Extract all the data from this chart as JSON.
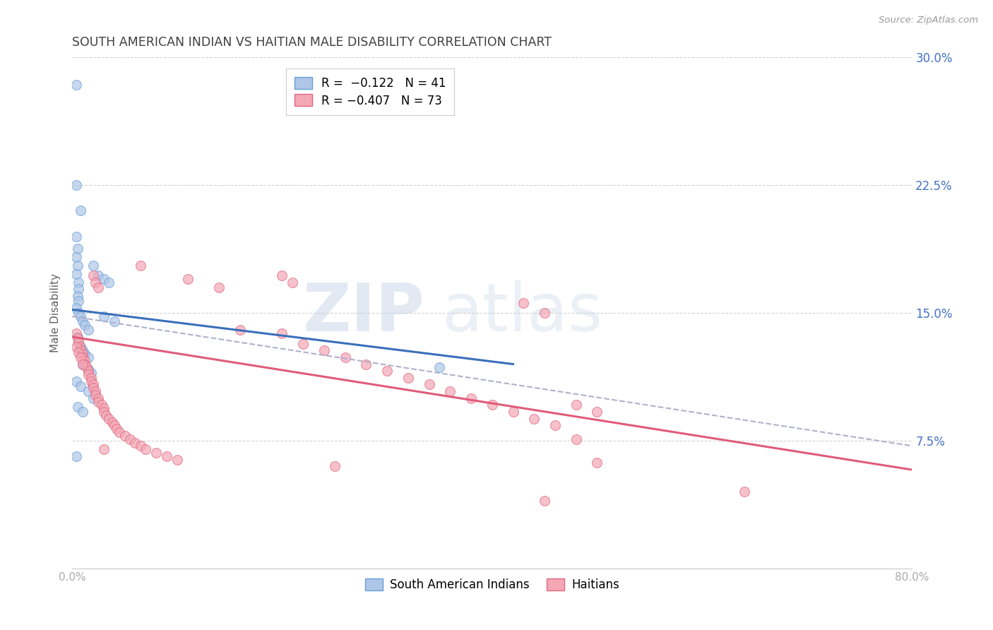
{
  "title": "SOUTH AMERICAN INDIAN VS HAITIAN MALE DISABILITY CORRELATION CHART",
  "source": "Source: ZipAtlas.com",
  "ylabel": "Male Disability",
  "xlim": [
    0.0,
    0.8
  ],
  "ylim": [
    0.0,
    0.3
  ],
  "yticks": [
    0.075,
    0.15,
    0.225,
    0.3
  ],
  "ytick_labels": [
    "7.5%",
    "15.0%",
    "22.5%",
    "30.0%"
  ],
  "xticks": [
    0.0,
    0.1,
    0.2,
    0.3,
    0.4,
    0.5,
    0.6,
    0.7,
    0.8
  ],
  "xtick_labels": [
    "0.0%",
    "",
    "",
    "",
    "",
    "",
    "",
    "",
    "80.0%"
  ],
  "watermark_zip": "ZIP",
  "watermark_atlas": "atlas",
  "background_color": "#ffffff",
  "grid_color": "#c8c8c8",
  "blue_scatter_color": "#aec6e8",
  "blue_scatter_edge": "#6a9fd8",
  "blue_line_color": "#3a6fba",
  "pink_scatter_color": "#f4a7b5",
  "pink_scatter_edge": "#e06880",
  "pink_line_color": "#e05c7a",
  "dash_line_color": "#b0b0cc",
  "title_color": "#404040",
  "axis_label_color": "#606060",
  "tick_label_color_right": "#4472c4",
  "tick_color_bottom": "#aaaaaa",
  "south_american_indians": [
    [
      0.004,
      0.284
    ],
    [
      0.004,
      0.225
    ],
    [
      0.008,
      0.21
    ],
    [
      0.004,
      0.195
    ],
    [
      0.005,
      0.188
    ],
    [
      0.004,
      0.183
    ],
    [
      0.005,
      0.178
    ],
    [
      0.004,
      0.173
    ],
    [
      0.006,
      0.168
    ],
    [
      0.006,
      0.164
    ],
    [
      0.005,
      0.16
    ],
    [
      0.006,
      0.157
    ],
    [
      0.004,
      0.153
    ],
    [
      0.006,
      0.15
    ],
    [
      0.008,
      0.148
    ],
    [
      0.01,
      0.145
    ],
    [
      0.012,
      0.143
    ],
    [
      0.015,
      0.14
    ],
    [
      0.005,
      0.136
    ],
    [
      0.006,
      0.133
    ],
    [
      0.008,
      0.13
    ],
    [
      0.01,
      0.128
    ],
    [
      0.012,
      0.126
    ],
    [
      0.015,
      0.124
    ],
    [
      0.01,
      0.12
    ],
    [
      0.015,
      0.117
    ],
    [
      0.018,
      0.115
    ],
    [
      0.004,
      0.11
    ],
    [
      0.008,
      0.107
    ],
    [
      0.015,
      0.104
    ],
    [
      0.02,
      0.1
    ],
    [
      0.005,
      0.095
    ],
    [
      0.01,
      0.092
    ],
    [
      0.004,
      0.066
    ],
    [
      0.02,
      0.178
    ],
    [
      0.025,
      0.172
    ],
    [
      0.03,
      0.17
    ],
    [
      0.035,
      0.168
    ],
    [
      0.03,
      0.148
    ],
    [
      0.04,
      0.145
    ],
    [
      0.35,
      0.118
    ]
  ],
  "haitians": [
    [
      0.004,
      0.138
    ],
    [
      0.005,
      0.135
    ],
    [
      0.006,
      0.133
    ],
    [
      0.007,
      0.13
    ],
    [
      0.008,
      0.128
    ],
    [
      0.01,
      0.126
    ],
    [
      0.01,
      0.124
    ],
    [
      0.012,
      0.122
    ],
    [
      0.012,
      0.12
    ],
    [
      0.014,
      0.118
    ],
    [
      0.015,
      0.116
    ],
    [
      0.015,
      0.114
    ],
    [
      0.018,
      0.112
    ],
    [
      0.018,
      0.11
    ],
    [
      0.02,
      0.108
    ],
    [
      0.02,
      0.106
    ],
    [
      0.022,
      0.104
    ],
    [
      0.022,
      0.102
    ],
    [
      0.025,
      0.1
    ],
    [
      0.025,
      0.098
    ],
    [
      0.028,
      0.096
    ],
    [
      0.03,
      0.094
    ],
    [
      0.03,
      0.092
    ],
    [
      0.032,
      0.09
    ],
    [
      0.035,
      0.088
    ],
    [
      0.038,
      0.086
    ],
    [
      0.04,
      0.084
    ],
    [
      0.042,
      0.082
    ],
    [
      0.045,
      0.08
    ],
    [
      0.05,
      0.078
    ],
    [
      0.055,
      0.076
    ],
    [
      0.06,
      0.074
    ],
    [
      0.065,
      0.072
    ],
    [
      0.07,
      0.07
    ],
    [
      0.08,
      0.068
    ],
    [
      0.09,
      0.066
    ],
    [
      0.1,
      0.064
    ],
    [
      0.004,
      0.13
    ],
    [
      0.006,
      0.127
    ],
    [
      0.008,
      0.124
    ],
    [
      0.01,
      0.12
    ],
    [
      0.02,
      0.172
    ],
    [
      0.022,
      0.168
    ],
    [
      0.025,
      0.165
    ],
    [
      0.065,
      0.178
    ],
    [
      0.2,
      0.172
    ],
    [
      0.21,
      0.168
    ],
    [
      0.11,
      0.17
    ],
    [
      0.14,
      0.165
    ],
    [
      0.16,
      0.14
    ],
    [
      0.2,
      0.138
    ],
    [
      0.22,
      0.132
    ],
    [
      0.24,
      0.128
    ],
    [
      0.26,
      0.124
    ],
    [
      0.28,
      0.12
    ],
    [
      0.3,
      0.116
    ],
    [
      0.32,
      0.112
    ],
    [
      0.34,
      0.108
    ],
    [
      0.36,
      0.104
    ],
    [
      0.38,
      0.1
    ],
    [
      0.4,
      0.096
    ],
    [
      0.42,
      0.092
    ],
    [
      0.44,
      0.088
    ],
    [
      0.46,
      0.084
    ],
    [
      0.48,
      0.096
    ],
    [
      0.5,
      0.092
    ],
    [
      0.43,
      0.156
    ],
    [
      0.45,
      0.15
    ],
    [
      0.48,
      0.076
    ],
    [
      0.5,
      0.062
    ],
    [
      0.25,
      0.06
    ],
    [
      0.45,
      0.04
    ],
    [
      0.64,
      0.045
    ],
    [
      0.03,
      0.07
    ]
  ],
  "blue_line_x": [
    0.0,
    0.42
  ],
  "blue_line_y": [
    0.152,
    0.12
  ],
  "pink_line_x": [
    0.0,
    0.8
  ],
  "pink_line_y": [
    0.136,
    0.058
  ],
  "dash_line_x": [
    0.0,
    0.8
  ],
  "dash_line_y": [
    0.148,
    0.072
  ]
}
